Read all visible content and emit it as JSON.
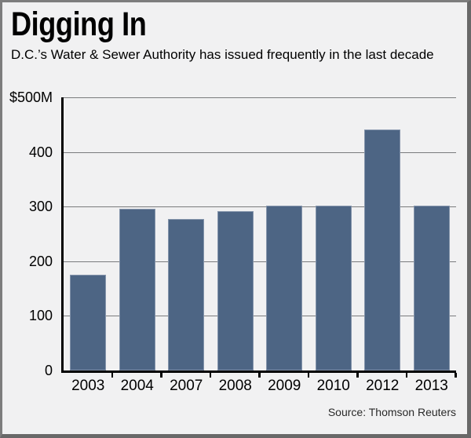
{
  "header": {
    "title": "Digging In",
    "subtitle": "D.C.’s Water & Sewer Authority has issued frequently in the last decade"
  },
  "chart_data": {
    "type": "bar",
    "title": "Digging In",
    "subtitle": "D.C.’s Water & Sewer Authority has issued frequently in the last decade",
    "categories": [
      "2003",
      "2004",
      "2007",
      "2008",
      "2009",
      "2010",
      "2012",
      "2013"
    ],
    "values": [
      175,
      296,
      278,
      291,
      302,
      302,
      441,
      302
    ],
    "unit": "$M",
    "xlabel": "",
    "ylabel": "",
    "ylim": [
      0,
      500
    ],
    "y_ticks": [
      {
        "value": 500,
        "label": "$500M"
      },
      {
        "value": 400,
        "label": "400"
      },
      {
        "value": 300,
        "label": "300"
      },
      {
        "value": 200,
        "label": "200"
      },
      {
        "value": 100,
        "label": "100"
      },
      {
        "value": 0,
        "label": "0"
      }
    ],
    "grid": true,
    "gridline_values": [
      500,
      400,
      300,
      200,
      100
    ],
    "legend": false,
    "bar_color": "#4d6584"
  },
  "footer": {
    "source": "Source: Thomson Reuters"
  },
  "colors": {
    "background": "#f1f1f2",
    "bar": "#4d6584",
    "grid": "#7a7b7d",
    "axis": "#000000",
    "frame_border_light": "#7d7d7d",
    "frame_border_dark": "#686868",
    "text": "#000000",
    "source_text": "#2a2a2a"
  }
}
